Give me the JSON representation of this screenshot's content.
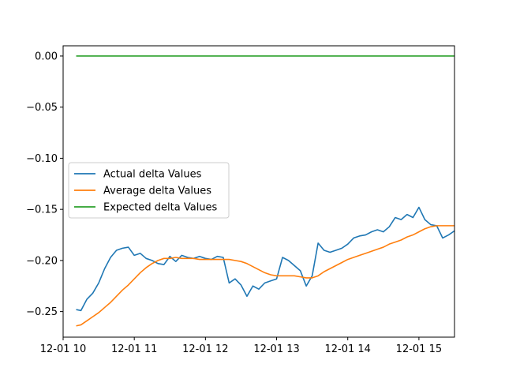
{
  "chart_data": {
    "type": "line",
    "title": "",
    "xlabel": "",
    "ylabel": "",
    "xlim": [
      "12-01 10:00",
      "12-01 15:30"
    ],
    "ylim": [
      -0.275,
      0.01
    ],
    "y_ticks": [
      {
        "value": 0.0,
        "label": "0.00"
      },
      {
        "value": -0.05,
        "label": "−0.05"
      },
      {
        "value": -0.1,
        "label": "−0.10"
      },
      {
        "value": -0.15,
        "label": "−0.15"
      },
      {
        "value": -0.2,
        "label": "−0.20"
      },
      {
        "value": -0.25,
        "label": "−0.25"
      }
    ],
    "x_ticks": [
      {
        "value": "12-01 10:00",
        "label": "12-01 10"
      },
      {
        "value": "12-01 11:00",
        "label": "12-01 11"
      },
      {
        "value": "12-01 12:00",
        "label": "12-01 12"
      },
      {
        "value": "12-01 13:00",
        "label": "12-01 13"
      },
      {
        "value": "12-01 14:00",
        "label": "12-01 14"
      },
      {
        "value": "12-01 15:00",
        "label": "12-01 15"
      }
    ],
    "grid": false,
    "legend_position": "center-left",
    "series": [
      {
        "name": "Actual delta Values",
        "color": "#1f77b4",
        "x": [
          "12-01 10:11",
          "12-01 10:15",
          "12-01 10:20",
          "12-01 10:25",
          "12-01 10:30",
          "12-01 10:35",
          "12-01 10:40",
          "12-01 10:45",
          "12-01 10:50",
          "12-01 10:55",
          "12-01 11:00",
          "12-01 11:05",
          "12-01 11:10",
          "12-01 11:15",
          "12-01 11:20",
          "12-01 11:25",
          "12-01 11:30",
          "12-01 11:35",
          "12-01 11:40",
          "12-01 11:45",
          "12-01 11:50",
          "12-01 11:55",
          "12-01 12:00",
          "12-01 12:05",
          "12-01 12:10",
          "12-01 12:15",
          "12-01 12:20",
          "12-01 12:25",
          "12-01 12:30",
          "12-01 12:35",
          "12-01 12:40",
          "12-01 12:45",
          "12-01 12:50",
          "12-01 12:55",
          "12-01 13:00",
          "12-01 13:05",
          "12-01 13:10",
          "12-01 13:15",
          "12-01 13:20",
          "12-01 13:25",
          "12-01 13:30",
          "12-01 13:35",
          "12-01 13:40",
          "12-01 13:45",
          "12-01 13:50",
          "12-01 13:55",
          "12-01 14:00",
          "12-01 14:05",
          "12-01 14:10",
          "12-01 14:15",
          "12-01 14:20",
          "12-01 14:25",
          "12-01 14:30",
          "12-01 14:35",
          "12-01 14:40",
          "12-01 14:45",
          "12-01 14:50",
          "12-01 14:55",
          "12-01 15:00",
          "12-01 15:05",
          "12-01 15:10",
          "12-01 15:15",
          "12-01 15:20",
          "12-01 15:25",
          "12-01 15:30"
        ],
        "y": [
          -0.248,
          -0.249,
          -0.238,
          -0.232,
          -0.222,
          -0.208,
          -0.197,
          -0.19,
          -0.188,
          -0.187,
          -0.195,
          -0.193,
          -0.198,
          -0.2,
          -0.203,
          -0.204,
          -0.196,
          -0.201,
          -0.195,
          -0.197,
          -0.198,
          -0.196,
          -0.198,
          -0.199,
          -0.196,
          -0.197,
          -0.222,
          -0.218,
          -0.224,
          -0.235,
          -0.225,
          -0.228,
          -0.222,
          -0.22,
          -0.218,
          -0.197,
          -0.2,
          -0.205,
          -0.21,
          -0.225,
          -0.215,
          -0.183,
          -0.19,
          -0.192,
          -0.19,
          -0.188,
          -0.184,
          -0.178,
          -0.176,
          -0.175,
          -0.172,
          -0.17,
          -0.172,
          -0.167,
          -0.158,
          -0.16,
          -0.155,
          -0.158,
          -0.148,
          -0.16,
          -0.165,
          -0.166,
          -0.178,
          -0.175,
          -0.171
        ]
      },
      {
        "name": "Average delta Values",
        "color": "#ff7f0e",
        "x": [
          "12-01 10:11",
          "12-01 10:15",
          "12-01 10:20",
          "12-01 10:25",
          "12-01 10:30",
          "12-01 10:35",
          "12-01 10:40",
          "12-01 10:45",
          "12-01 10:50",
          "12-01 10:55",
          "12-01 11:00",
          "12-01 11:05",
          "12-01 11:10",
          "12-01 11:15",
          "12-01 11:20",
          "12-01 11:25",
          "12-01 11:30",
          "12-01 11:35",
          "12-01 11:40",
          "12-01 11:45",
          "12-01 11:50",
          "12-01 11:55",
          "12-01 12:00",
          "12-01 12:05",
          "12-01 12:10",
          "12-01 12:15",
          "12-01 12:20",
          "12-01 12:25",
          "12-01 12:30",
          "12-01 12:35",
          "12-01 12:40",
          "12-01 12:45",
          "12-01 12:50",
          "12-01 12:55",
          "12-01 13:00",
          "12-01 13:05",
          "12-01 13:10",
          "12-01 13:15",
          "12-01 13:20",
          "12-01 13:25",
          "12-01 13:30",
          "12-01 13:35",
          "12-01 13:40",
          "12-01 13:45",
          "12-01 13:50",
          "12-01 13:55",
          "12-01 14:00",
          "12-01 14:05",
          "12-01 14:10",
          "12-01 14:15",
          "12-01 14:20",
          "12-01 14:25",
          "12-01 14:30",
          "12-01 14:35",
          "12-01 14:40",
          "12-01 14:45",
          "12-01 14:50",
          "12-01 14:55",
          "12-01 15:00",
          "12-01 15:05",
          "12-01 15:10",
          "12-01 15:15",
          "12-01 15:20",
          "12-01 15:25",
          "12-01 15:30"
        ],
        "y": [
          -0.264,
          -0.263,
          -0.259,
          -0.255,
          -0.251,
          -0.246,
          -0.241,
          -0.235,
          -0.229,
          -0.224,
          -0.218,
          -0.212,
          -0.207,
          -0.203,
          -0.2,
          -0.198,
          -0.198,
          -0.197,
          -0.198,
          -0.198,
          -0.198,
          -0.199,
          -0.199,
          -0.199,
          -0.199,
          -0.199,
          -0.199,
          -0.2,
          -0.201,
          -0.203,
          -0.206,
          -0.209,
          -0.212,
          -0.214,
          -0.215,
          -0.215,
          -0.215,
          -0.215,
          -0.216,
          -0.217,
          -0.217,
          -0.215,
          -0.211,
          -0.208,
          -0.205,
          -0.202,
          -0.199,
          -0.197,
          -0.195,
          -0.193,
          -0.191,
          -0.189,
          -0.187,
          -0.184,
          -0.182,
          -0.18,
          -0.177,
          -0.175,
          -0.172,
          -0.169,
          -0.167,
          -0.166,
          -0.166,
          -0.166,
          -0.166
        ]
      },
      {
        "name": "Expected delta Values",
        "color": "#2ca02c",
        "x": [
          "12-01 10:11",
          "12-01 11:00",
          "12-01 12:00",
          "12-01 13:00",
          "12-01 14:00",
          "12-01 15:00",
          "12-01 15:30"
        ],
        "y": [
          0.0,
          0.0,
          0.0,
          0.0,
          0.0,
          0.0,
          0.0
        ]
      }
    ]
  }
}
